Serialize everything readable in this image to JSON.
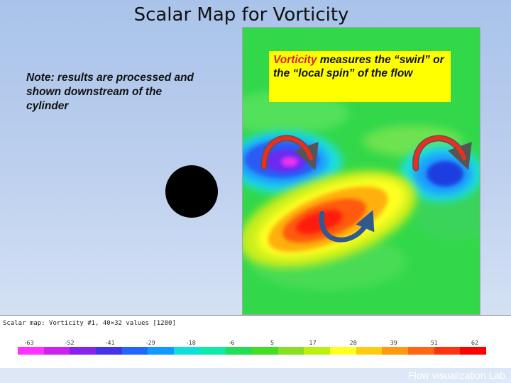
{
  "slide": {
    "title": "Scalar Map for Vorticity",
    "note": "Note: results are processed and shown downstream of the cylinder",
    "footer": "Flow visualization Lab"
  },
  "callout": {
    "highlight": "Vorticity",
    "text": " measures the “swirl” or the “local spin” of the flow"
  },
  "scale": {
    "header": "Scalar map: Vorticity #1, 40×32 values [1280]",
    "ticks": [
      "-63",
      "-52",
      "-41",
      "-29",
      "-18",
      "-6",
      "5",
      "17",
      "28",
      "39",
      "51",
      "62"
    ],
    "colors": [
      "#ff33ff",
      "#cc22ee",
      "#8822ee",
      "#4433ee",
      "#2266ff",
      "#1199ff",
      "#11dddd",
      "#11e8aa",
      "#22dd55",
      "#44dd22",
      "#88e022",
      "#bbee11",
      "#ffff22",
      "#ffcc11",
      "#ff9911",
      "#ff6611",
      "#ff3311",
      "#ff0000"
    ]
  },
  "colors": {
    "field_background": "#32d84a",
    "callout_background": "#ffff00",
    "callout_highlight": "#e02020",
    "red_arrow": "#e83020",
    "blue_arrow": "#2f5a8f"
  },
  "icons": {
    "vortex_ccw": "red-curved-arrow-icon",
    "vortex_cw": "blue-curved-arrow-icon"
  }
}
